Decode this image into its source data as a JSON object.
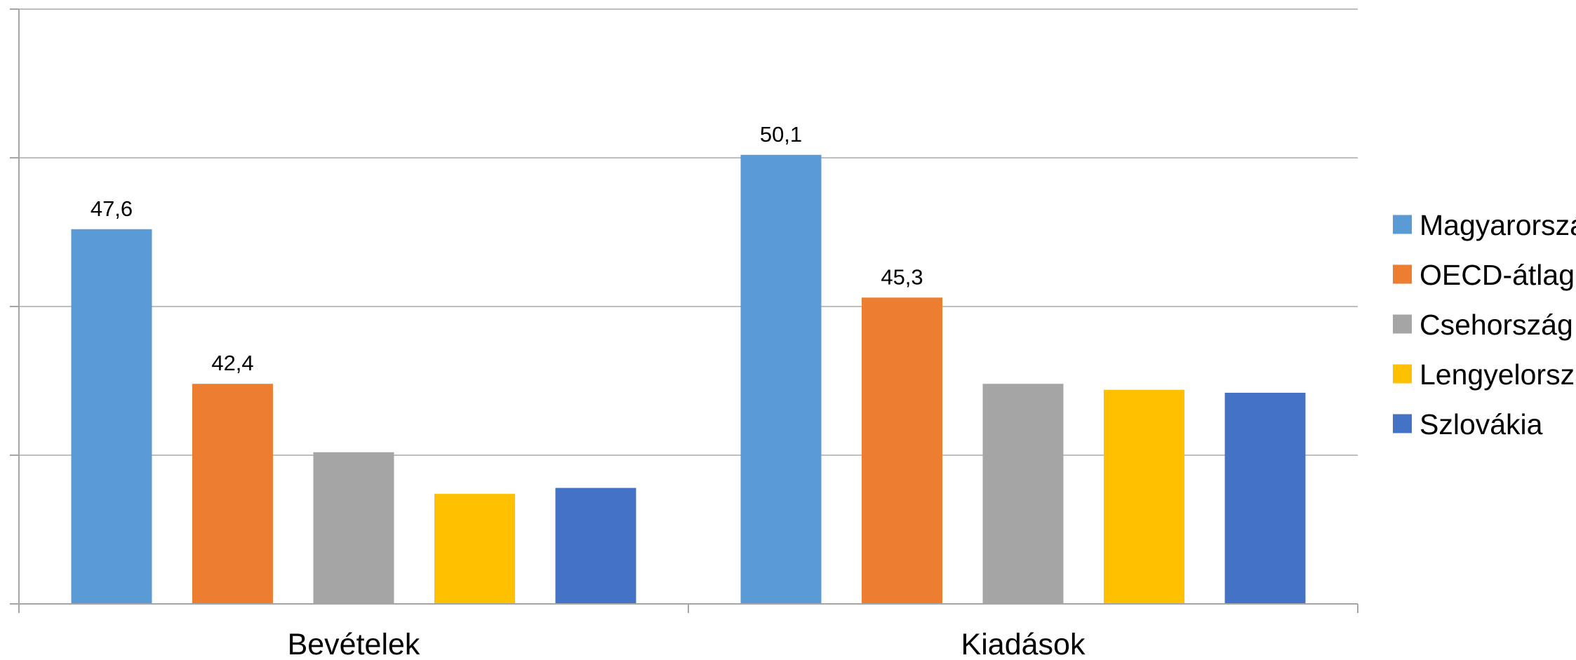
{
  "chart_data": {
    "type": "bar",
    "categories": [
      "Bevételek",
      "Kiadások"
    ],
    "series": [
      {
        "name": "Magyarország",
        "values": [
          47.6,
          50.1
        ],
        "color": "#5b9bd5",
        "labels": [
          "47,6",
          "50,1"
        ]
      },
      {
        "name": "OECD-átlag",
        "values": [
          42.4,
          45.3
        ],
        "color": "#ed7d31",
        "labels": [
          "42,4",
          "45,3"
        ]
      },
      {
        "name": "Csehország",
        "values": [
          40.1,
          42.4
        ],
        "color": "#a5a5a5",
        "labels": [
          "",
          ""
        ]
      },
      {
        "name": "Lengyelország",
        "values": [
          38.7,
          42.2
        ],
        "color": "#ffc000",
        "labels": [
          "",
          ""
        ]
      },
      {
        "name": "Szlovákia",
        "values": [
          38.9,
          42.1
        ],
        "color": "#4472c4",
        "labels": [
          "",
          ""
        ]
      }
    ],
    "ylim": [
      35,
      55
    ],
    "grid": true,
    "legend_position": "right"
  }
}
